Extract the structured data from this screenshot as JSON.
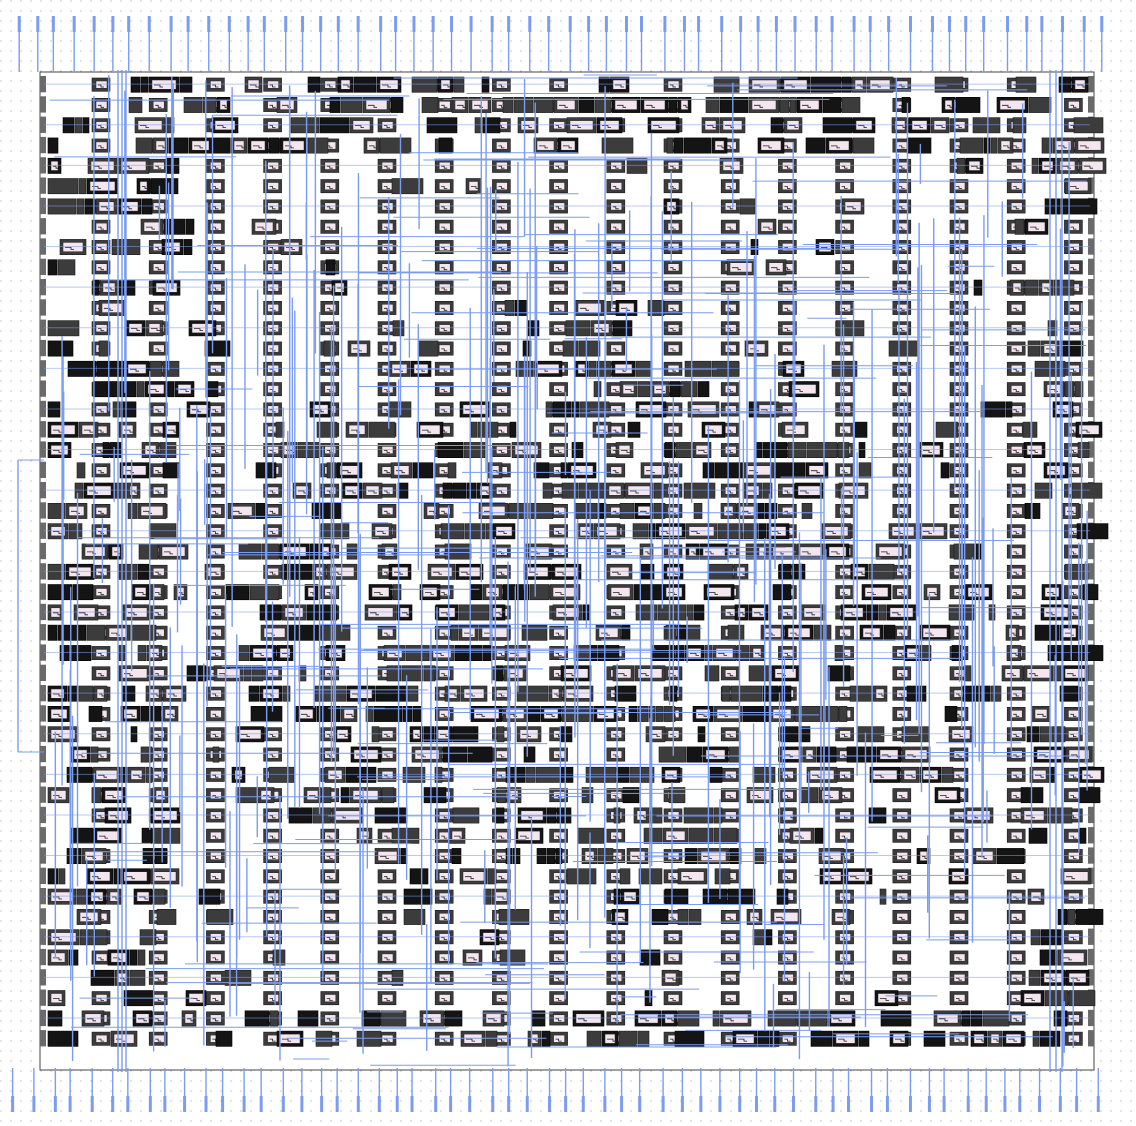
{
  "view": {
    "kind": "placed-and-routed layout",
    "visible_text": []
  },
  "colors": {
    "background": "#ffffff",
    "grid_dots": "#b8b8b8",
    "standard_cell": "#3c3c3c",
    "dense_cell": "#141414",
    "cell_inner": "#f3e6ee",
    "route_metal": "#7b9cf0",
    "row_outline": "#6a6a6a"
  },
  "layers": [
    {
      "name": "grid",
      "visible": true
    },
    {
      "name": "standard-cells",
      "visible": true
    },
    {
      "name": "routing",
      "visible": true
    },
    {
      "name": "io-pins",
      "visible": true
    }
  ],
  "icons": {
    "cell_glyph": "inverter-like-glyph-icon",
    "pin": "io-pin-icon"
  }
}
